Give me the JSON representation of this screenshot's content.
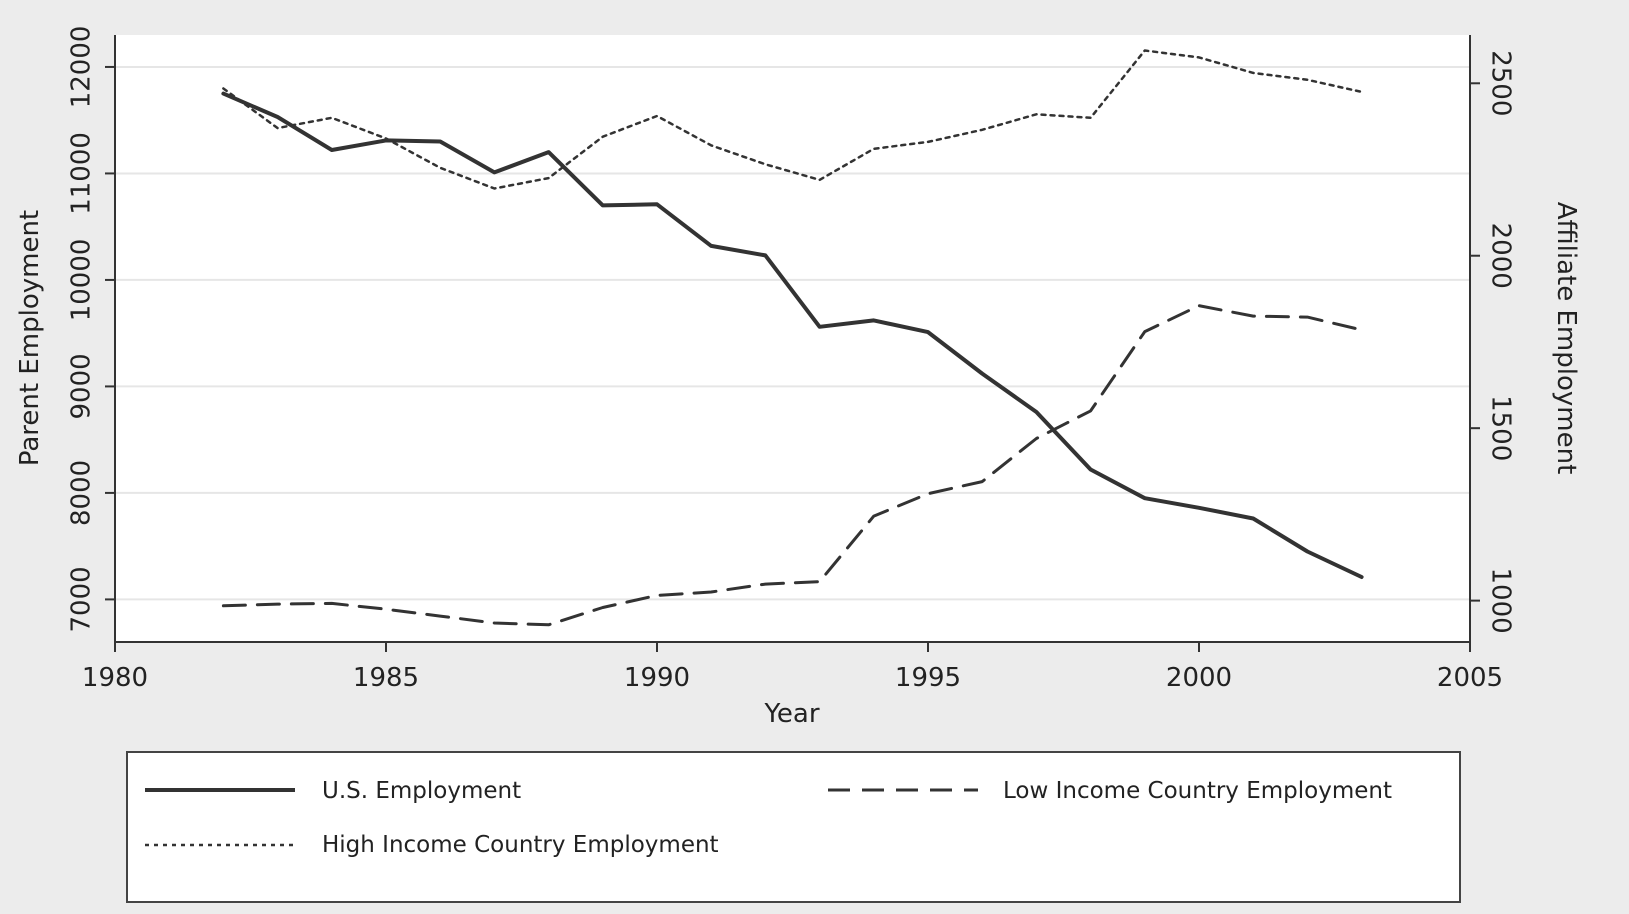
{
  "chart_data": {
    "type": "line",
    "title": "",
    "xlabel": "Year",
    "ylabel_left": "Parent Employment",
    "ylabel_right": "Affiliate Employment",
    "xlim": [
      1980,
      2005
    ],
    "ylim_left": [
      6600,
      12300
    ],
    "ylim_right": [
      880,
      2640
    ],
    "xticks": [
      "1980",
      "1985",
      "1990",
      "1995",
      "2000",
      "2005"
    ],
    "yticks_left": [
      "7000",
      "8000",
      "9000",
      "10000",
      "11000",
      "12000"
    ],
    "yticks_right": [
      "1000",
      "1500",
      "2000",
      "2500"
    ],
    "grid": "horizontal",
    "legend_position": "bottom",
    "x": [
      1982,
      1983,
      1984,
      1985,
      1986,
      1987,
      1988,
      1989,
      1990,
      1991,
      1992,
      1993,
      1994,
      1995,
      1996,
      1997,
      1998,
      1999,
      2000,
      2001,
      2002,
      2003
    ],
    "series": [
      {
        "name": "U.S. Employment",
        "axis": "left",
        "style": "solid",
        "values": [
          11750,
          11530,
          11220,
          11310,
          11300,
          11010,
          11200,
          10700,
          10710,
          10320,
          10230,
          9560,
          9620,
          9510,
          9120,
          8760,
          8220,
          7950,
          7860,
          7760,
          7450,
          7210
        ]
      },
      {
        "name": "Low Income Country Employment",
        "axis": "right",
        "style": "dashed",
        "values": [
          985,
          990,
          992,
          975,
          955,
          935,
          930,
          980,
          1015,
          1025,
          1048,
          1055,
          1245,
          1310,
          1345,
          1470,
          1550,
          1780,
          1855,
          1825,
          1822,
          1785
        ]
      },
      {
        "name": "High Income Country Employment",
        "axis": "right",
        "style": "dotted",
        "values": [
          2485,
          2370,
          2400,
          2340,
          2255,
          2195,
          2225,
          2345,
          2405,
          2320,
          2265,
          2220,
          2310,
          2330,
          2365,
          2410,
          2400,
          2595,
          2575,
          2530,
          2510,
          2475
        ]
      }
    ]
  },
  "colors": {
    "line": "#333333",
    "plot_bg": "#ffffff",
    "outer_bg": "#ececec",
    "grid": "#e6e6e6"
  }
}
